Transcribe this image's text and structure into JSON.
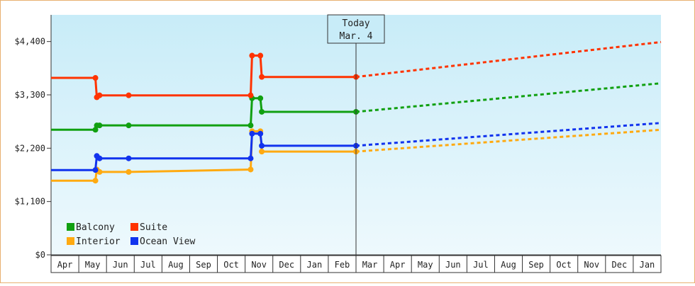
{
  "chart_data": {
    "type": "line",
    "title": "",
    "xlabel": "",
    "ylabel": "",
    "ylim": [
      0,
      4950
    ],
    "y_ticks": [
      "$0",
      "$1,100",
      "$2,200",
      "$3,300",
      "$4,400"
    ],
    "y_tick_values": [
      0,
      1100,
      2200,
      3300,
      4400
    ],
    "months": [
      "Apr",
      "May",
      "Jun",
      "Jul",
      "Aug",
      "Sep",
      "Oct",
      "Nov",
      "Dec",
      "Jan",
      "Feb",
      "Mar",
      "Apr",
      "May",
      "Jun",
      "Jul",
      "Aug",
      "Sep",
      "Oct",
      "Nov",
      "Dec",
      "Jan"
    ],
    "today": {
      "label_line1": "Today",
      "label_line2": "Mar. 4",
      "x": 11.0
    },
    "background_gradient": [
      "#c8ecf8",
      "#eef9fd"
    ],
    "legend": {
      "placement": "bottom-left"
    },
    "series": [
      {
        "name": "Balcony",
        "color": "#11a011",
        "history": [
          [
            0,
            2580
          ],
          [
            1.6,
            2580
          ],
          [
            1.65,
            2670
          ],
          [
            1.75,
            2670
          ],
          [
            2.8,
            2670
          ],
          [
            7.2,
            2670
          ],
          [
            7.25,
            3230
          ],
          [
            7.55,
            3230
          ],
          [
            7.6,
            2950
          ],
          [
            11.0,
            2950
          ]
        ],
        "markers": [
          [
            1.6,
            2580
          ],
          [
            1.65,
            2670
          ],
          [
            1.75,
            2670
          ],
          [
            2.8,
            2670
          ],
          [
            7.2,
            2670
          ],
          [
            7.25,
            3230
          ],
          [
            7.55,
            3230
          ],
          [
            7.6,
            2950
          ],
          [
            11.0,
            2950
          ]
        ],
        "forecast": [
          [
            11.0,
            2950
          ],
          [
            22.0,
            3540
          ]
        ]
      },
      {
        "name": "Suite",
        "color": "#ff3300",
        "history": [
          [
            0,
            3650
          ],
          [
            1.6,
            3650
          ],
          [
            1.65,
            3250
          ],
          [
            1.75,
            3290
          ],
          [
            2.8,
            3290
          ],
          [
            7.2,
            3290
          ],
          [
            7.25,
            4110
          ],
          [
            7.55,
            4110
          ],
          [
            7.6,
            3670
          ],
          [
            11.0,
            3670
          ]
        ],
        "markers": [
          [
            1.6,
            3650
          ],
          [
            1.65,
            3250
          ],
          [
            1.75,
            3290
          ],
          [
            2.8,
            3290
          ],
          [
            7.2,
            3290
          ],
          [
            7.25,
            4110
          ],
          [
            7.55,
            4110
          ],
          [
            7.6,
            3670
          ],
          [
            11.0,
            3670
          ]
        ],
        "forecast": [
          [
            11.0,
            3670
          ],
          [
            22.0,
            4390
          ]
        ]
      },
      {
        "name": "Interior",
        "color": "#ffaa11",
        "history": [
          [
            0,
            1530
          ],
          [
            1.6,
            1530
          ],
          [
            1.65,
            1760
          ],
          [
            1.75,
            1710
          ],
          [
            2.8,
            1710
          ],
          [
            7.2,
            1760
          ],
          [
            7.25,
            2550
          ],
          [
            7.55,
            2550
          ],
          [
            7.6,
            2130
          ],
          [
            11.0,
            2130
          ]
        ],
        "markers": [
          [
            1.6,
            1530
          ],
          [
            1.65,
            1760
          ],
          [
            1.75,
            1710
          ],
          [
            2.8,
            1710
          ],
          [
            7.2,
            1760
          ],
          [
            7.25,
            2550
          ],
          [
            7.55,
            2550
          ],
          [
            7.6,
            2130
          ],
          [
            11.0,
            2130
          ]
        ],
        "forecast": [
          [
            11.0,
            2130
          ],
          [
            22.0,
            2580
          ]
        ]
      },
      {
        "name": "Ocean View",
        "color": "#1133ee",
        "history": [
          [
            0,
            1750
          ],
          [
            1.6,
            1750
          ],
          [
            1.65,
            2040
          ],
          [
            1.75,
            1990
          ],
          [
            2.8,
            1990
          ],
          [
            7.2,
            1990
          ],
          [
            7.25,
            2500
          ],
          [
            7.55,
            2500
          ],
          [
            7.6,
            2250
          ],
          [
            11.0,
            2250
          ]
        ],
        "markers": [
          [
            1.6,
            1750
          ],
          [
            1.65,
            2040
          ],
          [
            1.75,
            1990
          ],
          [
            2.8,
            1990
          ],
          [
            7.2,
            1990
          ],
          [
            7.25,
            2500
          ],
          [
            7.55,
            2500
          ],
          [
            7.6,
            2250
          ],
          [
            11.0,
            2250
          ]
        ],
        "forecast": [
          [
            11.0,
            2250
          ],
          [
            22.0,
            2720
          ]
        ]
      }
    ]
  }
}
